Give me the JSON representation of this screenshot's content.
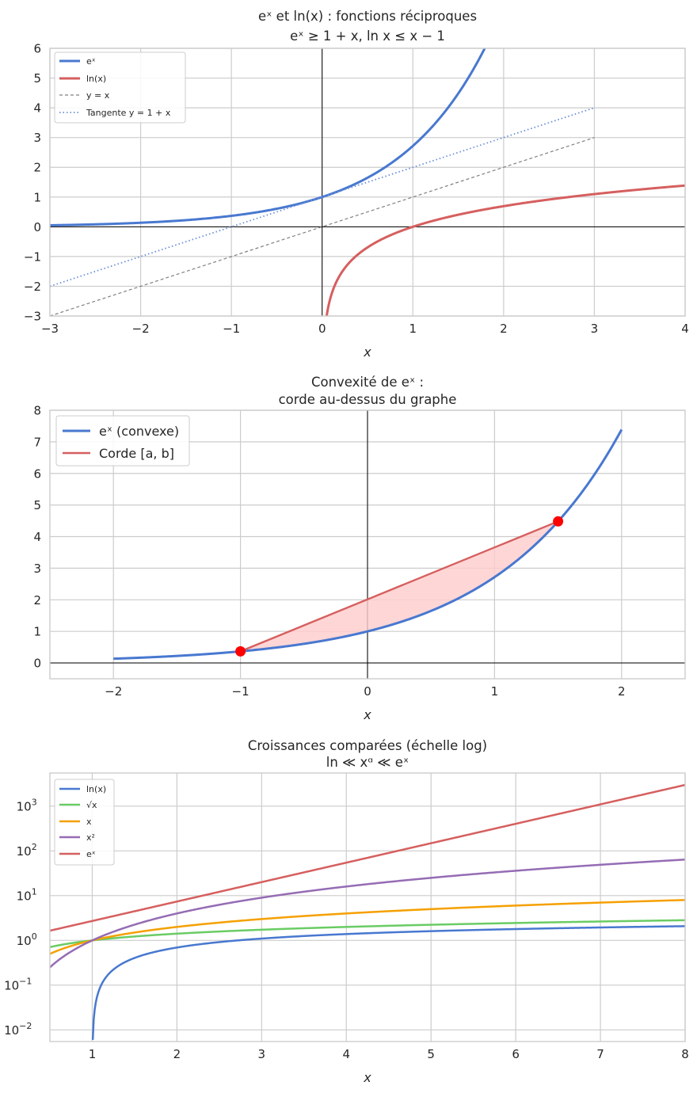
{
  "chart_data": [
    {
      "type": "line",
      "title": "eˣ et ln(x) : fonctions réciproques",
      "subtitle": "eˣ ≥ 1 + x, ln x ≤ x − 1",
      "xlabel": "x",
      "ylabel": "",
      "xlim": [
        -3,
        4
      ],
      "ylim": [
        -3,
        6
      ],
      "xticks": [
        -3,
        -2,
        -1,
        0,
        1,
        2,
        3,
        4
      ],
      "yticks": [
        -3,
        -2,
        -1,
        0,
        1,
        2,
        3,
        4,
        5,
        6
      ],
      "grid": true,
      "legend_position": "top-left",
      "series": [
        {
          "name": "eˣ",
          "function": "exp",
          "domain": [
            -3,
            4
          ],
          "color": "#4878d0",
          "style": "solid"
        },
        {
          "name": "ln(x)",
          "function": "ln",
          "domain": [
            0.01,
            4
          ],
          "color": "#d65f5f",
          "style": "solid"
        },
        {
          "name": "y = x",
          "function": "identity",
          "domain": [
            -3,
            3
          ],
          "color": "#808080",
          "style": "dashed"
        },
        {
          "name": "Tangente y = 1 + x",
          "function": "one_plus_x",
          "domain": [
            -3,
            3
          ],
          "color": "#6a8fd8",
          "style": "dotted"
        }
      ]
    },
    {
      "type": "line",
      "title": "Convexité de eˣ :",
      "subtitle": "corde au-dessus du graphe",
      "xlabel": "x",
      "ylabel": "",
      "xlim": [
        -2.5,
        2.5
      ],
      "ylim": [
        -0.5,
        8
      ],
      "xticks": [
        -2,
        -1,
        0,
        1,
        2
      ],
      "yticks": [
        0,
        1,
        2,
        3,
        4,
        5,
        6,
        7,
        8
      ],
      "grid": true,
      "legend_position": "top-left",
      "series": [
        {
          "name": "eˣ (convexe)",
          "function": "exp",
          "domain": [
            -2,
            2
          ],
          "color": "#4878d0",
          "style": "solid"
        },
        {
          "name": "Corde [a, b]",
          "function": "chord",
          "domain": [
            -1,
            1.5
          ],
          "color": "#d65f5f",
          "style": "solid"
        }
      ],
      "chord": {
        "a": -1,
        "b": 1.5,
        "fill_color": "#ffcccc"
      },
      "points": [
        {
          "x": -1,
          "y": 0.368,
          "color": "#ff0000"
        },
        {
          "x": 1.5,
          "y": 4.482,
          "color": "#ff0000"
        }
      ]
    },
    {
      "type": "line",
      "title": "Croissances comparées (échelle log)",
      "subtitle": "ln ≪ xᵅ ≪ eˣ",
      "xlabel": "x",
      "ylabel": "",
      "xlim": [
        0.5,
        8
      ],
      "ylim": [
        0.0055,
        5500
      ],
      "yscale": "log",
      "xticks": [
        1,
        2,
        3,
        4,
        5,
        6,
        7,
        8
      ],
      "yticks": [
        0.01,
        0.1,
        1,
        10,
        100,
        1000
      ],
      "ytick_labels": [
        {
          "base": "10",
          "exp": "−2"
        },
        {
          "base": "10",
          "exp": "−1"
        },
        {
          "base": "10",
          "exp": "0"
        },
        {
          "base": "10",
          "exp": "1"
        },
        {
          "base": "10",
          "exp": "2"
        },
        {
          "base": "10",
          "exp": "3"
        }
      ],
      "grid": true,
      "legend_position": "top-left",
      "series": [
        {
          "name": "ln(x)",
          "function": "ln",
          "domain": [
            1.006,
            8
          ],
          "color": "#4878d0",
          "style": "solid"
        },
        {
          "name": "√x",
          "function": "sqrt",
          "domain": [
            0.5,
            8
          ],
          "color": "#6acc64",
          "style": "solid"
        },
        {
          "name": "x",
          "function": "identity",
          "domain": [
            0.5,
            8
          ],
          "color": "#f5a000",
          "style": "solid"
        },
        {
          "name": "x²",
          "function": "square",
          "domain": [
            0.5,
            8
          ],
          "color": "#956cb4",
          "style": "solid"
        },
        {
          "name": "eˣ",
          "function": "exp",
          "domain": [
            0.5,
            8
          ],
          "color": "#d65f5f",
          "style": "solid"
        }
      ]
    }
  ]
}
